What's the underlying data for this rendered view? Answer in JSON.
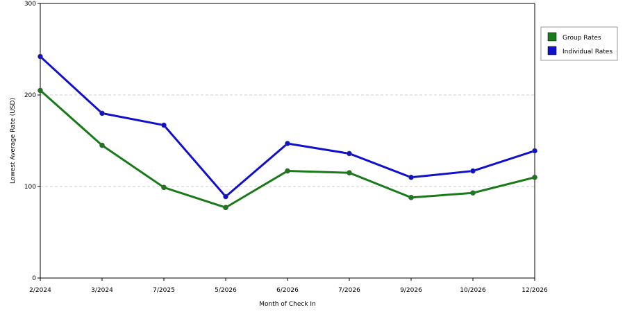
{
  "chart_data": {
    "type": "line",
    "title": "",
    "xlabel": "Month of Check In",
    "ylabel": "Lowest Average Rate (USD)",
    "categories": [
      "2/2024",
      "3/2024",
      "7/2025",
      "5/2026",
      "6/2026",
      "7/2026",
      "9/2026",
      "10/2026",
      "12/2026"
    ],
    "y_ticks": [
      "0",
      "100",
      "200",
      "300"
    ],
    "ylim": [
      0,
      300
    ],
    "grid": "horizontal dashed",
    "legend_position": "right",
    "series": [
      {
        "name": "Group Rates",
        "color": "#1a7a1a",
        "values": [
          205,
          145,
          99,
          77,
          117,
          115,
          88,
          93,
          110
        ]
      },
      {
        "name": "Individual Rates",
        "color": "#1010cc",
        "values": [
          242,
          180,
          167,
          89,
          147,
          136,
          110,
          117,
          139
        ]
      }
    ]
  }
}
